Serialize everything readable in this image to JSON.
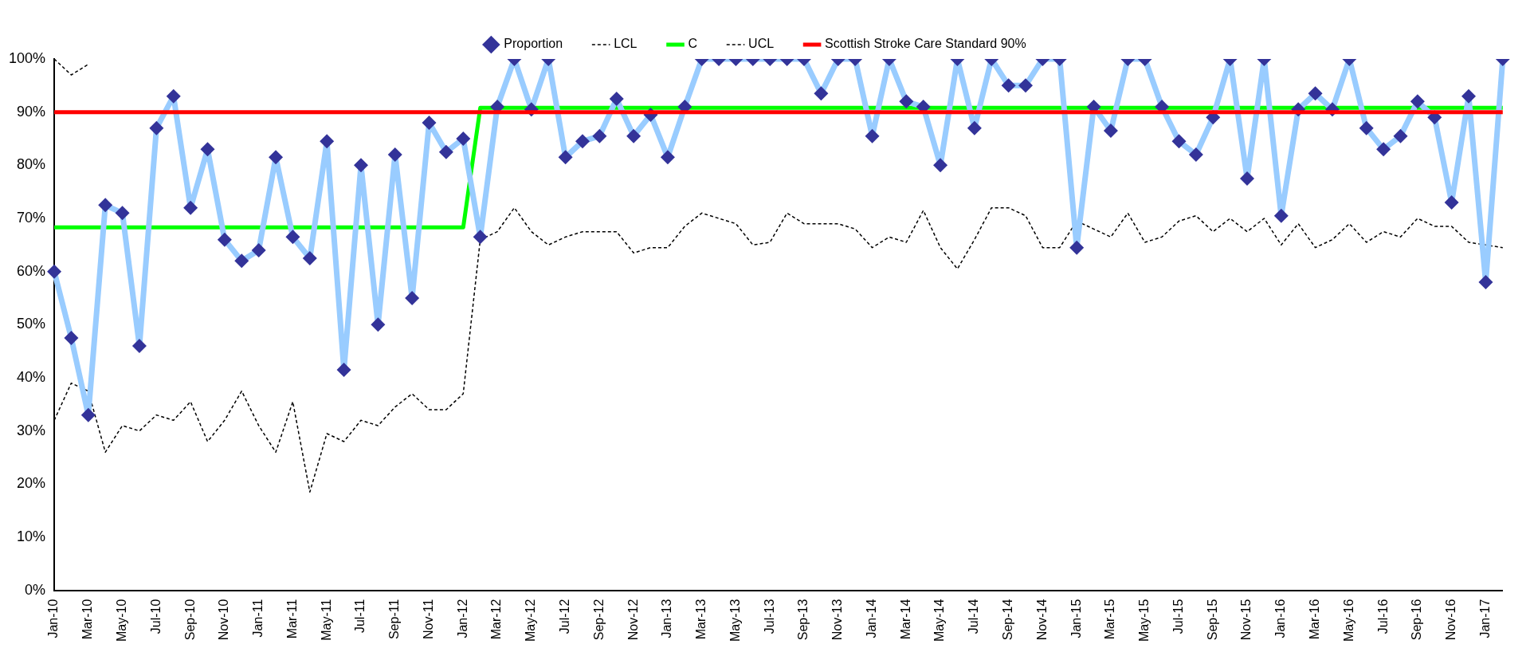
{
  "chart_data": {
    "type": "line",
    "categories": [
      "Jan-10",
      null,
      "Mar-10",
      null,
      "May-10",
      null,
      "Jul-10",
      null,
      "Sep-10",
      null,
      "Nov-10",
      null,
      "Jan-11",
      null,
      "Mar-11",
      null,
      "May-11",
      null,
      "Jul-11",
      null,
      "Sep-11",
      null,
      "Nov-11",
      null,
      "Jan-12",
      null,
      "Mar-12",
      null,
      "May-12",
      null,
      "Jul-12",
      null,
      "Sep-12",
      null,
      "Nov-12",
      null,
      "Jan-13",
      null,
      "Mar-13",
      null,
      "May-13",
      null,
      "Jul-13",
      null,
      "Sep-13",
      null,
      "Nov-13",
      null,
      "Jan-14",
      null,
      "Mar-14",
      null,
      "May-14",
      null,
      "Jul-14",
      null,
      "Sep-14",
      null,
      "Nov-14",
      null,
      "Jan-15",
      null,
      "Mar-15",
      null,
      "May-15",
      null,
      "Jul-15",
      null,
      "Sep-15",
      null,
      "Nov-15",
      null,
      "Jan-16",
      null,
      "Mar-16",
      null,
      "May-16",
      null,
      "Jul-16",
      null,
      "Sep-16",
      null,
      "Nov-16",
      null,
      "Jan-17",
      null
    ],
    "series": [
      {
        "name": "Proportion",
        "color": "#99ccff",
        "marker": "diamond",
        "line_style": "solid",
        "values": [
          60,
          47.5,
          33,
          72.5,
          71,
          46,
          87,
          93,
          72,
          83,
          66,
          62,
          64,
          81.5,
          66.5,
          62.5,
          84.5,
          41.5,
          80,
          50,
          82,
          55,
          88,
          82.5,
          85,
          66.5,
          91,
          100,
          90.5,
          100,
          81.5,
          84.5,
          85.5,
          92.5,
          85.5,
          89.5,
          81.5,
          91,
          100,
          100,
          100,
          100,
          100,
          100,
          100,
          93.5,
          100,
          100,
          85.5,
          100,
          92,
          91,
          80,
          100,
          87,
          100,
          95,
          95,
          100,
          100,
          64.5,
          91,
          86.5,
          100,
          100,
          91,
          84.5,
          82,
          89,
          100,
          77.5,
          100,
          70.5,
          90.5,
          93.5,
          90.5,
          100,
          87,
          83,
          85.5,
          92,
          89,
          73,
          93,
          58,
          100
        ]
      },
      {
        "name": "LCL",
        "color": "#000000",
        "marker": "none",
        "line_style": "dashed",
        "values": [
          32,
          39,
          37.5,
          26,
          31,
          30,
          33,
          32,
          35.5,
          28,
          32,
          37.5,
          31,
          26,
          35.5,
          18.5,
          29.5,
          28,
          32,
          31,
          34.5,
          37,
          34,
          34,
          37,
          66,
          67.5,
          72,
          67.5,
          65,
          66.5,
          67.5,
          67.5,
          67.5,
          63.5,
          64.5,
          64.5,
          68.5,
          71,
          70,
          69,
          65,
          65.5,
          71,
          69,
          69,
          69,
          68,
          64.5,
          66.5,
          65.5,
          71.5,
          64.5,
          60.5,
          66,
          72,
          72,
          70.5,
          64.5,
          64.5,
          69.5,
          68,
          66.5,
          71,
          65.5,
          66.5,
          69.5,
          70.5,
          67.5,
          70,
          67.5,
          70,
          65,
          69,
          64.5,
          66,
          69,
          65.5,
          67.5,
          66.5,
          70,
          68.5,
          68.5,
          65.5,
          65,
          64.5
        ]
      },
      {
        "name": "C",
        "color": "#00ff00",
        "marker": "none",
        "line_style": "solid",
        "values": [
          68.3,
          68.3,
          68.3,
          68.3,
          68.3,
          68.3,
          68.3,
          68.3,
          68.3,
          68.3,
          68.3,
          68.3,
          68.3,
          68.3,
          68.3,
          68.3,
          68.3,
          68.3,
          68.3,
          68.3,
          68.3,
          68.3,
          68.3,
          68.3,
          68.3,
          90.8,
          90.8,
          90.8,
          90.8,
          90.8,
          90.8,
          90.8,
          90.8,
          90.8,
          90.8,
          90.8,
          90.8,
          90.8,
          90.8,
          90.8,
          90.8,
          90.8,
          90.8,
          90.8,
          90.8,
          90.8,
          90.8,
          90.8,
          90.8,
          90.8,
          90.8,
          90.8,
          90.8,
          90.8,
          90.8,
          90.8,
          90.8,
          90.8,
          90.8,
          90.8,
          90.8,
          90.8,
          90.8,
          90.8,
          90.8,
          90.8,
          90.8,
          90.8,
          90.8,
          90.8,
          90.8,
          90.8,
          90.8,
          90.8,
          90.8,
          90.8,
          90.8,
          90.8,
          90.8,
          90.8,
          90.8,
          90.8,
          90.8,
          90.8,
          90.8,
          90.8
        ]
      },
      {
        "name": "UCL",
        "color": "#000000",
        "marker": "none",
        "line_style": "dashed",
        "values": [
          100,
          97,
          99,
          null,
          null,
          null,
          null,
          null,
          null,
          null,
          null,
          null,
          null,
          null,
          null,
          null,
          null,
          null,
          null,
          null,
          null,
          null,
          null,
          null,
          null,
          null,
          null,
          null,
          null,
          null,
          null,
          null,
          null,
          null,
          null,
          null,
          null,
          null,
          null,
          null,
          null,
          null,
          null,
          null,
          null,
          null,
          null,
          null,
          null,
          null,
          null,
          null,
          null,
          null,
          null,
          null,
          null,
          null,
          null,
          null,
          null,
          null,
          null,
          null,
          null,
          null,
          null,
          null,
          null,
          null,
          null,
          null,
          null,
          null,
          null,
          null,
          null,
          null,
          null,
          null,
          null,
          null,
          null,
          null,
          null,
          null
        ]
      },
      {
        "name": "Scottish Stroke Care Standard 90%",
        "color": "#ff0000",
        "marker": "none",
        "line_style": "solid",
        "values": [
          90,
          90,
          90,
          90,
          90,
          90,
          90,
          90,
          90,
          90,
          90,
          90,
          90,
          90,
          90,
          90,
          90,
          90,
          90,
          90,
          90,
          90,
          90,
          90,
          90,
          90,
          90,
          90,
          90,
          90,
          90,
          90,
          90,
          90,
          90,
          90,
          90,
          90,
          90,
          90,
          90,
          90,
          90,
          90,
          90,
          90,
          90,
          90,
          90,
          90,
          90,
          90,
          90,
          90,
          90,
          90,
          90,
          90,
          90,
          90,
          90,
          90,
          90,
          90,
          90,
          90,
          90,
          90,
          90,
          90,
          90,
          90,
          90,
          90,
          90,
          90,
          90,
          90,
          90,
          90,
          90,
          90,
          90,
          90,
          90,
          90
        ]
      }
    ],
    "ylim": [
      0,
      100
    ],
    "yticks": [
      {
        "value": 0,
        "label": "0%"
      },
      {
        "value": 10,
        "label": "10%"
      },
      {
        "value": 20,
        "label": "20%"
      },
      {
        "value": 30,
        "label": "30%"
      },
      {
        "value": 40,
        "label": "40%"
      },
      {
        "value": 50,
        "label": "50%"
      },
      {
        "value": 60,
        "label": "60%"
      },
      {
        "value": 70,
        "label": "70%"
      },
      {
        "value": 80,
        "label": "80%"
      },
      {
        "value": 90,
        "label": "90%"
      },
      {
        "value": 100,
        "label": "100%"
      }
    ],
    "grid": false,
    "legend": "top"
  }
}
